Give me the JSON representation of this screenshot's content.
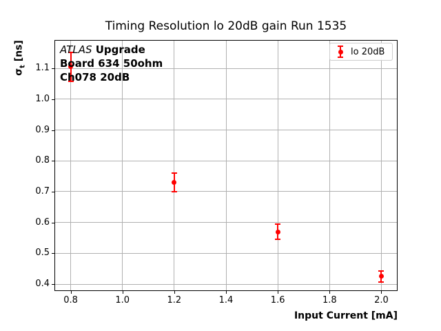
{
  "chart_data": {
    "type": "scatter",
    "title": "Timing Resolution lo 20dB gain Run 1535",
    "xlabel": "Input Current [mA]",
    "ylabel": "σ_t [ns]",
    "ylabel_parts": {
      "symbol": "σ",
      "subscript": "t",
      "units": " [ns]"
    },
    "annotation": {
      "line1_italic": "ATLAS",
      "line1_bold": " Upgrade",
      "line2": "Board 634 50ohm",
      "line3": "Ch078 20dB"
    },
    "legend": {
      "position": "upper right",
      "entries": [
        "lo 20dB"
      ]
    },
    "series": [
      {
        "name": "lo 20dB",
        "color": "#ff0000",
        "marker": "circle-errorbar",
        "x": [
          0.8,
          1.2,
          1.6,
          2.0
        ],
        "y": [
          1.105,
          0.73,
          0.57,
          0.425
        ],
        "yerr": [
          0.046,
          0.031,
          0.025,
          0.018
        ]
      }
    ],
    "xlim": [
      0.74,
      2.06
    ],
    "ylim": [
      0.38,
      1.19
    ],
    "xticks": [
      0.8,
      1.0,
      1.2,
      1.4,
      1.6,
      1.8,
      2.0
    ],
    "yticks": [
      0.4,
      0.5,
      0.6,
      0.7,
      0.8,
      0.9,
      1.0,
      1.1
    ],
    "xtick_labels": [
      "0.8",
      "1.0",
      "1.2",
      "1.4",
      "1.6",
      "1.8",
      "2.0"
    ],
    "ytick_labels": [
      "0.4",
      "0.5",
      "0.6",
      "0.7",
      "0.8",
      "0.9",
      "1.0",
      "1.1"
    ],
    "grid": true,
    "colors": {
      "grid": "#b0b0b0",
      "spine": "#000000",
      "marker": "#ff0000",
      "legend_border": "#cccccc",
      "text": "#000000",
      "background": "#ffffff"
    }
  }
}
